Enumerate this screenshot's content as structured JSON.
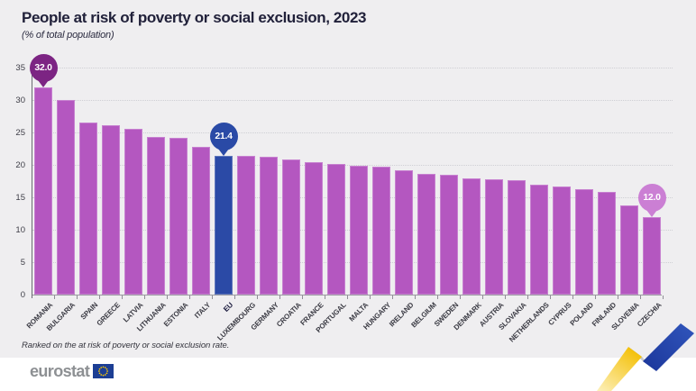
{
  "header": {
    "title": "People at risk of poverty or social exclusion, 2023",
    "subtitle": "(% of total population)"
  },
  "footnote": "Ranked on the at risk of poverty or social exclusion rate.",
  "logo": {
    "text": "eurostat",
    "flag_icon": "eu-flag-icon"
  },
  "colors": {
    "background": "#efeef0",
    "bar": "#b457c0",
    "bar_highlight": "#2b4aa6",
    "callout_high": "#7c2483",
    "callout_eu": "#2a4aa6",
    "callout_low": "#cb7fd4",
    "title_text": "#21213a",
    "axis_text": "#3d3d46",
    "ribbon_yellow": "#f4c10a",
    "ribbon_gray": "#a7a8ac",
    "ribbon_blue": "#2b4db0",
    "flag_blue": "#1c3e94",
    "flag_stars": "#ffcc00"
  },
  "chart_data": {
    "type": "bar",
    "title": "People at risk of poverty or social exclusion, 2023",
    "subtitle": "(% of total population)",
    "unit": "% of total population",
    "categories": [
      "ROMANIA",
      "BULGARIA",
      "SPAIN",
      "GREECE",
      "LATVIA",
      "LITHUANIA",
      "ESTONIA",
      "ITALY",
      "EU",
      "LUXEMBOURG",
      "GERMANY",
      "CROATIA",
      "FRANCE",
      "PORTUGAL",
      "MALTA",
      "HUNGARY",
      "IRELAND",
      "BELGIUM",
      "SWEDEN",
      "DENMARK",
      "AUSTRIA",
      "SLOVAKIA",
      "NETHERLANDS",
      "CYPRUS",
      "POLAND",
      "FINLAND",
      "SLOVENIA",
      "CZECHIA"
    ],
    "values": [
      32.0,
      30.0,
      26.5,
      26.1,
      25.6,
      24.3,
      24.2,
      22.8,
      21.4,
      21.4,
      21.3,
      20.8,
      20.4,
      20.1,
      19.8,
      19.7,
      19.2,
      18.6,
      18.5,
      17.9,
      17.8,
      17.6,
      17.0,
      16.7,
      16.3,
      15.8,
      13.7,
      12.0
    ],
    "ylim": [
      0,
      35
    ],
    "yticks": [
      0,
      5,
      10,
      15,
      20,
      25,
      30,
      35
    ],
    "grid": "dotted-horizontal",
    "legend": "none",
    "highlight_category": "EU",
    "callouts": [
      {
        "category": "ROMANIA",
        "text": "32.0",
        "color_key": "callout_high"
      },
      {
        "category": "EU",
        "text": "21.4",
        "color_key": "callout_eu"
      },
      {
        "category": "CZECHIA",
        "text": "12.0",
        "color_key": "callout_low"
      }
    ]
  }
}
